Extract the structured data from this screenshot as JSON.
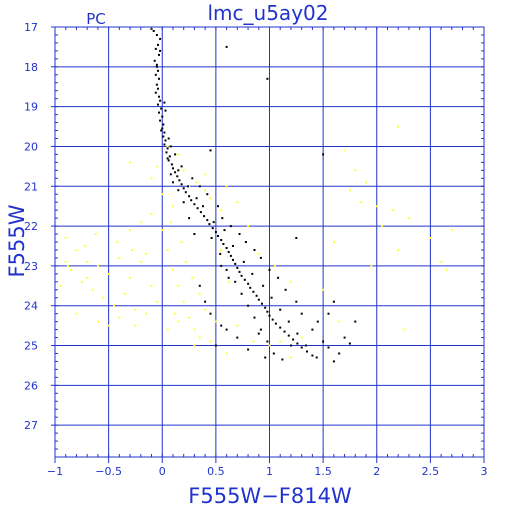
{
  "chart_data": {
    "type": "scatter",
    "title": "lmc_u5ay02",
    "corner_label": "PC",
    "xlabel": "F555W−F814W",
    "ylabel": "F555W",
    "xlim": [
      -1,
      3
    ],
    "ylim": [
      27.8,
      17
    ],
    "y_inverted": true,
    "grid": true,
    "x_major_ticks": [
      -1,
      -0.5,
      0,
      0.5,
      1,
      1.5,
      2,
      2.5,
      3
    ],
    "x_tick_labels": [
      "−1",
      "−0.5",
      "0",
      "0.5",
      "1",
      "1.5",
      "2",
      "2.5",
      "3"
    ],
    "y_major_ticks": [
      17,
      18,
      19,
      20,
      21,
      22,
      23,
      24,
      25,
      26,
      27
    ],
    "y_tick_labels": [
      "17",
      "18",
      "19",
      "20",
      "21",
      "22",
      "23",
      "24",
      "25",
      "26",
      "27"
    ],
    "colors": {
      "axis": "#2233cc",
      "series_black": "#000000",
      "series_yellow": "#ffff33"
    },
    "series": [
      {
        "color_key": "series_black",
        "points": [
          [
            -0.08,
            17.1
          ],
          [
            -0.05,
            17.2
          ],
          [
            -0.02,
            17.3
          ],
          [
            -0.04,
            17.45
          ],
          [
            -0.06,
            17.55
          ],
          [
            -0.03,
            17.7
          ],
          [
            -0.07,
            17.85
          ],
          [
            -0.05,
            17.95
          ],
          [
            -0.04,
            18.1
          ],
          [
            -0.06,
            18.2
          ],
          [
            -0.03,
            18.3
          ],
          [
            -0.05,
            18.45
          ],
          [
            -0.04,
            18.55
          ],
          [
            -0.06,
            18.65
          ],
          [
            -0.03,
            18.75
          ],
          [
            -0.02,
            18.85
          ],
          [
            -0.04,
            18.95
          ],
          [
            -0.01,
            19.05
          ],
          [
            -0.03,
            19.15
          ],
          [
            0.0,
            19.25
          ],
          [
            -0.02,
            19.35
          ],
          [
            0.01,
            19.45
          ],
          [
            0.0,
            19.55
          ],
          [
            0.02,
            19.65
          ],
          [
            0.01,
            19.75
          ],
          [
            0.03,
            19.85
          ],
          [
            0.02,
            19.95
          ],
          [
            0.05,
            20.05
          ],
          [
            0.04,
            20.15
          ],
          [
            0.07,
            20.25
          ],
          [
            0.06,
            20.35
          ],
          [
            0.09,
            20.45
          ],
          [
            0.1,
            20.55
          ],
          [
            0.12,
            20.65
          ],
          [
            0.14,
            20.75
          ],
          [
            0.16,
            20.85
          ],
          [
            0.18,
            20.95
          ],
          [
            0.2,
            21.05
          ],
          [
            0.22,
            21.15
          ],
          [
            0.25,
            21.25
          ],
          [
            0.27,
            21.35
          ],
          [
            0.3,
            21.45
          ],
          [
            0.33,
            21.55
          ],
          [
            0.36,
            21.65
          ],
          [
            0.39,
            21.75
          ],
          [
            0.42,
            21.85
          ],
          [
            0.44,
            21.95
          ],
          [
            0.47,
            22.05
          ],
          [
            0.5,
            22.15
          ],
          [
            0.52,
            22.25
          ],
          [
            0.55,
            22.35
          ],
          [
            0.57,
            22.45
          ],
          [
            0.6,
            22.55
          ],
          [
            0.62,
            22.65
          ],
          [
            0.64,
            22.75
          ],
          [
            0.66,
            22.85
          ],
          [
            0.68,
            22.95
          ],
          [
            0.7,
            23.05
          ],
          [
            0.72,
            23.15
          ],
          [
            0.74,
            23.25
          ],
          [
            0.77,
            23.35
          ],
          [
            0.8,
            23.45
          ],
          [
            0.82,
            23.55
          ],
          [
            0.85,
            23.65
          ],
          [
            0.88,
            23.75
          ],
          [
            0.9,
            23.85
          ],
          [
            0.93,
            23.95
          ],
          [
            0.96,
            24.05
          ],
          [
            0.98,
            24.15
          ],
          [
            1.0,
            24.25
          ],
          [
            1.03,
            24.35
          ],
          [
            1.06,
            24.45
          ],
          [
            1.1,
            24.55
          ],
          [
            1.14,
            24.65
          ],
          [
            1.18,
            24.75
          ],
          [
            1.22,
            24.85
          ],
          [
            1.26,
            24.95
          ],
          [
            1.3,
            25.05
          ],
          [
            1.35,
            25.15
          ],
          [
            1.4,
            25.25
          ],
          [
            -0.1,
            17.05
          ],
          [
            -0.02,
            17.6
          ],
          [
            0.02,
            18.9
          ],
          [
            0.06,
            19.8
          ],
          [
            0.08,
            20.0
          ],
          [
            0.15,
            20.6
          ],
          [
            0.24,
            21.0
          ],
          [
            0.32,
            21.3
          ],
          [
            0.38,
            21.5
          ],
          [
            0.48,
            21.9
          ],
          [
            0.58,
            22.1
          ],
          [
            0.46,
            22.3
          ],
          [
            0.66,
            22.5
          ],
          [
            0.54,
            22.7
          ],
          [
            0.76,
            22.9
          ],
          [
            0.6,
            23.1
          ],
          [
            0.84,
            23.2
          ],
          [
            0.68,
            23.4
          ],
          [
            0.94,
            23.5
          ],
          [
            0.74,
            23.7
          ],
          [
            1.02,
            23.8
          ],
          [
            0.8,
            24.0
          ],
          [
            1.1,
            24.1
          ],
          [
            0.86,
            24.3
          ],
          [
            1.18,
            24.4
          ],
          [
            0.92,
            24.6
          ],
          [
            1.26,
            24.7
          ],
          [
            0.98,
            24.9
          ],
          [
            1.34,
            25.0
          ],
          [
            1.04,
            25.2
          ],
          [
            1.44,
            25.3
          ],
          [
            1.55,
            25.05
          ],
          [
            1.65,
            25.2
          ],
          [
            0.7,
            24.8
          ],
          [
            0.6,
            24.6
          ],
          [
            0.45,
            24.2
          ],
          [
            0.4,
            23.9
          ],
          [
            0.35,
            23.5
          ],
          [
            0.55,
            23.0
          ],
          [
            0.62,
            23.3
          ],
          [
            0.9,
            24.7
          ],
          [
            1.2,
            25.0
          ],
          [
            1.5,
            24.9
          ],
          [
            1.7,
            24.8
          ],
          [
            1.75,
            24.95
          ],
          [
            1.6,
            25.4
          ],
          [
            0.5,
            25.0
          ],
          [
            0.8,
            25.1
          ],
          [
            0.96,
            25.3
          ],
          [
            1.12,
            25.35
          ],
          [
            0.2,
            21.4
          ],
          [
            0.1,
            20.9
          ],
          [
            0.05,
            20.3
          ],
          [
            0.12,
            20.2
          ],
          [
            0.18,
            20.5
          ],
          [
            0.28,
            20.8
          ],
          [
            0.35,
            21.0
          ],
          [
            0.42,
            21.2
          ],
          [
            0.52,
            21.5
          ],
          [
            0.56,
            21.8
          ],
          [
            0.64,
            22.0
          ],
          [
            0.72,
            22.2
          ],
          [
            0.78,
            22.4
          ],
          [
            0.86,
            22.6
          ],
          [
            0.92,
            22.8
          ],
          [
            1.0,
            23.1
          ],
          [
            1.08,
            23.3
          ],
          [
            1.15,
            23.6
          ],
          [
            1.25,
            23.9
          ],
          [
            1.3,
            24.2
          ],
          [
            1.4,
            24.6
          ],
          [
            1.45,
            24.4
          ],
          [
            1.55,
            24.2
          ],
          [
            0.3,
            22.2
          ],
          [
            0.25,
            21.8
          ],
          [
            0.15,
            21.1
          ],
          [
            0.08,
            20.7
          ],
          [
            -0.01,
            19.6
          ],
          [
            0.03,
            19.1
          ],
          [
            -0.05,
            18.0
          ],
          [
            0.98,
            18.3
          ],
          [
            0.6,
            17.5
          ],
          [
            1.5,
            20.2
          ],
          [
            0.45,
            20.1
          ],
          [
            1.25,
            22.3
          ],
          [
            1.6,
            23.9
          ],
          [
            1.8,
            24.4
          ],
          [
            0.55,
            24.5
          ]
        ]
      },
      {
        "color_key": "series_yellow",
        "points": [
          [
            -0.9,
            22.3
          ],
          [
            -0.8,
            22.6
          ],
          [
            -0.7,
            22.9
          ],
          [
            -0.85,
            23.1
          ],
          [
            -0.6,
            23.0
          ],
          [
            -0.75,
            23.4
          ],
          [
            -0.5,
            23.2
          ],
          [
            -0.65,
            23.6
          ],
          [
            -0.4,
            22.8
          ],
          [
            -0.55,
            23.8
          ],
          [
            -0.3,
            23.3
          ],
          [
            -0.45,
            24.0
          ],
          [
            -0.2,
            22.9
          ],
          [
            -0.35,
            23.7
          ],
          [
            -0.1,
            23.5
          ],
          [
            -0.25,
            24.1
          ],
          [
            -0.95,
            23.5
          ],
          [
            -0.88,
            23.0
          ],
          [
            -0.72,
            22.5
          ],
          [
            -0.62,
            22.2
          ],
          [
            -0.42,
            22.4
          ],
          [
            -0.28,
            22.6
          ],
          [
            -0.15,
            22.7
          ],
          [
            -0.05,
            23.9
          ],
          [
            0.05,
            22.6
          ],
          [
            0.1,
            23.1
          ],
          [
            0.15,
            23.5
          ],
          [
            0.2,
            23.9
          ],
          [
            0.25,
            24.3
          ],
          [
            0.3,
            24.6
          ],
          [
            0.12,
            24.2
          ],
          [
            0.18,
            22.4
          ],
          [
            0.22,
            22.9
          ],
          [
            0.28,
            23.3
          ],
          [
            0.35,
            23.7
          ],
          [
            0.4,
            24.1
          ],
          [
            0.08,
            21.9
          ],
          [
            0.0,
            22.1
          ],
          [
            -0.1,
            21.7
          ],
          [
            -0.2,
            21.9
          ],
          [
            -0.3,
            22.1
          ],
          [
            0.1,
            21.5
          ],
          [
            0.15,
            20.2
          ],
          [
            0.2,
            20.6
          ],
          [
            0.32,
            20.9
          ],
          [
            0.45,
            21.3
          ],
          [
            0.25,
            21.0
          ],
          [
            0.4,
            20.7
          ],
          [
            1.7,
            20.1
          ],
          [
            1.8,
            20.6
          ],
          [
            1.9,
            20.9
          ],
          [
            2.0,
            21.5
          ],
          [
            2.15,
            21.6
          ],
          [
            2.3,
            21.8
          ],
          [
            2.5,
            22.3
          ],
          [
            2.7,
            22.1
          ],
          [
            2.6,
            22.9
          ],
          [
            2.65,
            23.1
          ],
          [
            2.2,
            19.5
          ],
          [
            1.75,
            21.1
          ],
          [
            1.85,
            21.4
          ],
          [
            2.05,
            22.0
          ],
          [
            2.25,
            24.6
          ],
          [
            1.65,
            24.4
          ],
          [
            1.5,
            23.6
          ],
          [
            1.3,
            24.8
          ],
          [
            1.2,
            25.3
          ],
          [
            0.6,
            25.2
          ],
          [
            0.45,
            24.9
          ],
          [
            0.5,
            24.4
          ],
          [
            0.7,
            24.5
          ],
          [
            0.35,
            24.8
          ],
          [
            -0.05,
            20.5
          ],
          [
            -0.1,
            20.8
          ],
          [
            0.0,
            21.2
          ],
          [
            0.05,
            20.0
          ],
          [
            -0.3,
            20.4
          ],
          [
            0.6,
            21.0
          ],
          [
            0.7,
            21.4
          ],
          [
            0.55,
            22.6
          ],
          [
            0.62,
            23.4
          ],
          [
            0.85,
            24.9
          ],
          [
            1.0,
            25.0
          ],
          [
            -0.6,
            24.4
          ],
          [
            -0.8,
            24.2
          ],
          [
            -0.9,
            22.9
          ],
          [
            -0.5,
            24.5
          ],
          [
            -0.4,
            24.3
          ],
          [
            -0.25,
            24.5
          ],
          [
            -0.15,
            24.2
          ],
          [
            0.05,
            24.6
          ],
          [
            0.15,
            24.4
          ],
          [
            0.3,
            25.0
          ],
          [
            1.1,
            24.9
          ],
          [
            0.4,
            21.1
          ],
          [
            0.55,
            21.6
          ],
          [
            1.95,
            23.0
          ],
          [
            2.2,
            22.6
          ],
          [
            1.6,
            22.4
          ],
          [
            0.8,
            22.0
          ],
          [
            0.9,
            22.7
          ],
          [
            1.05,
            23.0
          ],
          [
            1.2,
            23.4
          ],
          [
            -0.7,
            23.3
          ]
        ]
      }
    ]
  }
}
